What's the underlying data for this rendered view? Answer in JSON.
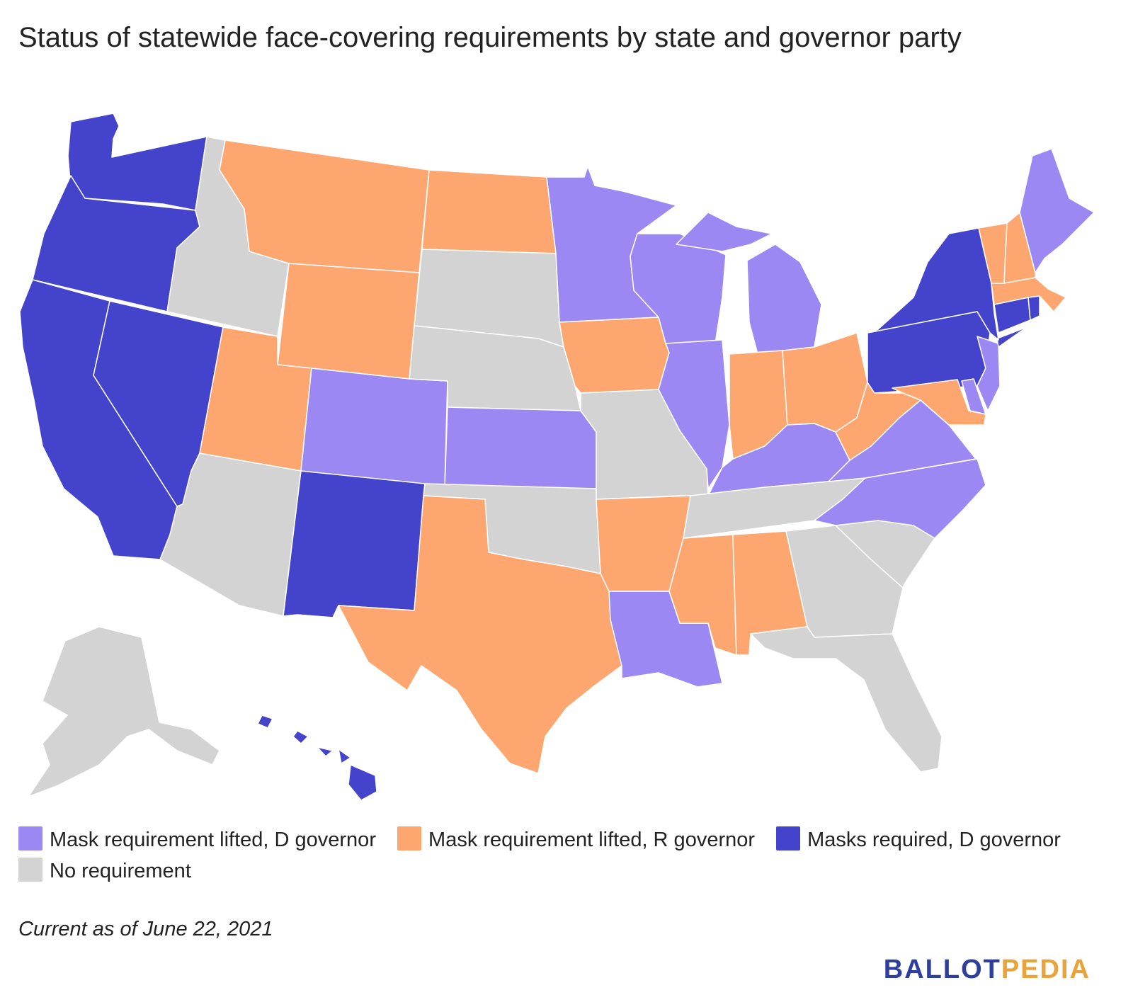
{
  "title": "Status of statewide face-covering requirements by state and governor party",
  "legend": [
    {
      "label": "Mask requirement lifted, D governor",
      "color": "#9b88f2"
    },
    {
      "label": "Mask requirement lifted, R governor",
      "color": "#fda670"
    },
    {
      "label": "Masks required, D governor",
      "color": "#4443cc"
    },
    {
      "label": "No requirement",
      "color": "#d3d3d3"
    }
  ],
  "note": "Current as of June 22, 2021",
  "brand": {
    "part1": "BALLOT",
    "part2": "PEDIA"
  },
  "colors": {
    "lifted_d": "#9b88f2",
    "lifted_r": "#fda670",
    "required_d": "#4443cc",
    "none": "#d3d3d3"
  },
  "chart_data": {
    "type": "choropleth",
    "categories": [
      "Mask requirement lifted, D governor",
      "Mask requirement lifted, R governor",
      "Masks required, D governor",
      "No requirement"
    ],
    "states": {
      "WA": "Masks required, D governor",
      "OR": "Masks required, D governor",
      "CA": "Masks required, D governor",
      "NV": "Masks required, D governor",
      "NM": "Masks required, D governor",
      "NY": "Masks required, D governor",
      "PA": "Masks required, D governor",
      "CT": "Masks required, D governor",
      "RI": "Masks required, D governor",
      "HI": "Masks required, D governor",
      "ID": "No requirement",
      "AZ": "No requirement",
      "SD": "No requirement",
      "NE": "No requirement",
      "OK": "No requirement",
      "MO": "No requirement",
      "TN": "No requirement",
      "GA": "No requirement",
      "SC": "No requirement",
      "FL": "No requirement",
      "AK": "No requirement",
      "MT": "Mask requirement lifted, R governor",
      "WY": "Mask requirement lifted, R governor",
      "UT": "Mask requirement lifted, R governor",
      "ND": "Mask requirement lifted, R governor",
      "IA": "Mask requirement lifted, R governor",
      "TX": "Mask requirement lifted, R governor",
      "AR": "Mask requirement lifted, R governor",
      "MS": "Mask requirement lifted, R governor",
      "AL": "Mask requirement lifted, R governor",
      "IN": "Mask requirement lifted, R governor",
      "OH": "Mask requirement lifted, R governor",
      "WV": "Mask requirement lifted, R governor",
      "MD": "Mask requirement lifted, R governor",
      "VT": "Mask requirement lifted, R governor",
      "NH": "Mask requirement lifted, R governor",
      "MA": "Mask requirement lifted, R governor",
      "CO": "Mask requirement lifted, D governor",
      "KS": "Mask requirement lifted, D governor",
      "MN": "Mask requirement lifted, D governor",
      "WI": "Mask requirement lifted, D governor",
      "IL": "Mask requirement lifted, D governor",
      "MI": "Mask requirement lifted, D governor",
      "KY": "Mask requirement lifted, D governor",
      "VA": "Mask requirement lifted, D governor",
      "NC": "Mask requirement lifted, D governor",
      "LA": "Mask requirement lifted, D governor",
      "NJ": "Mask requirement lifted, D governor",
      "DE": "Mask requirement lifted, D governor",
      "ME": "Mask requirement lifted, D governor"
    }
  }
}
